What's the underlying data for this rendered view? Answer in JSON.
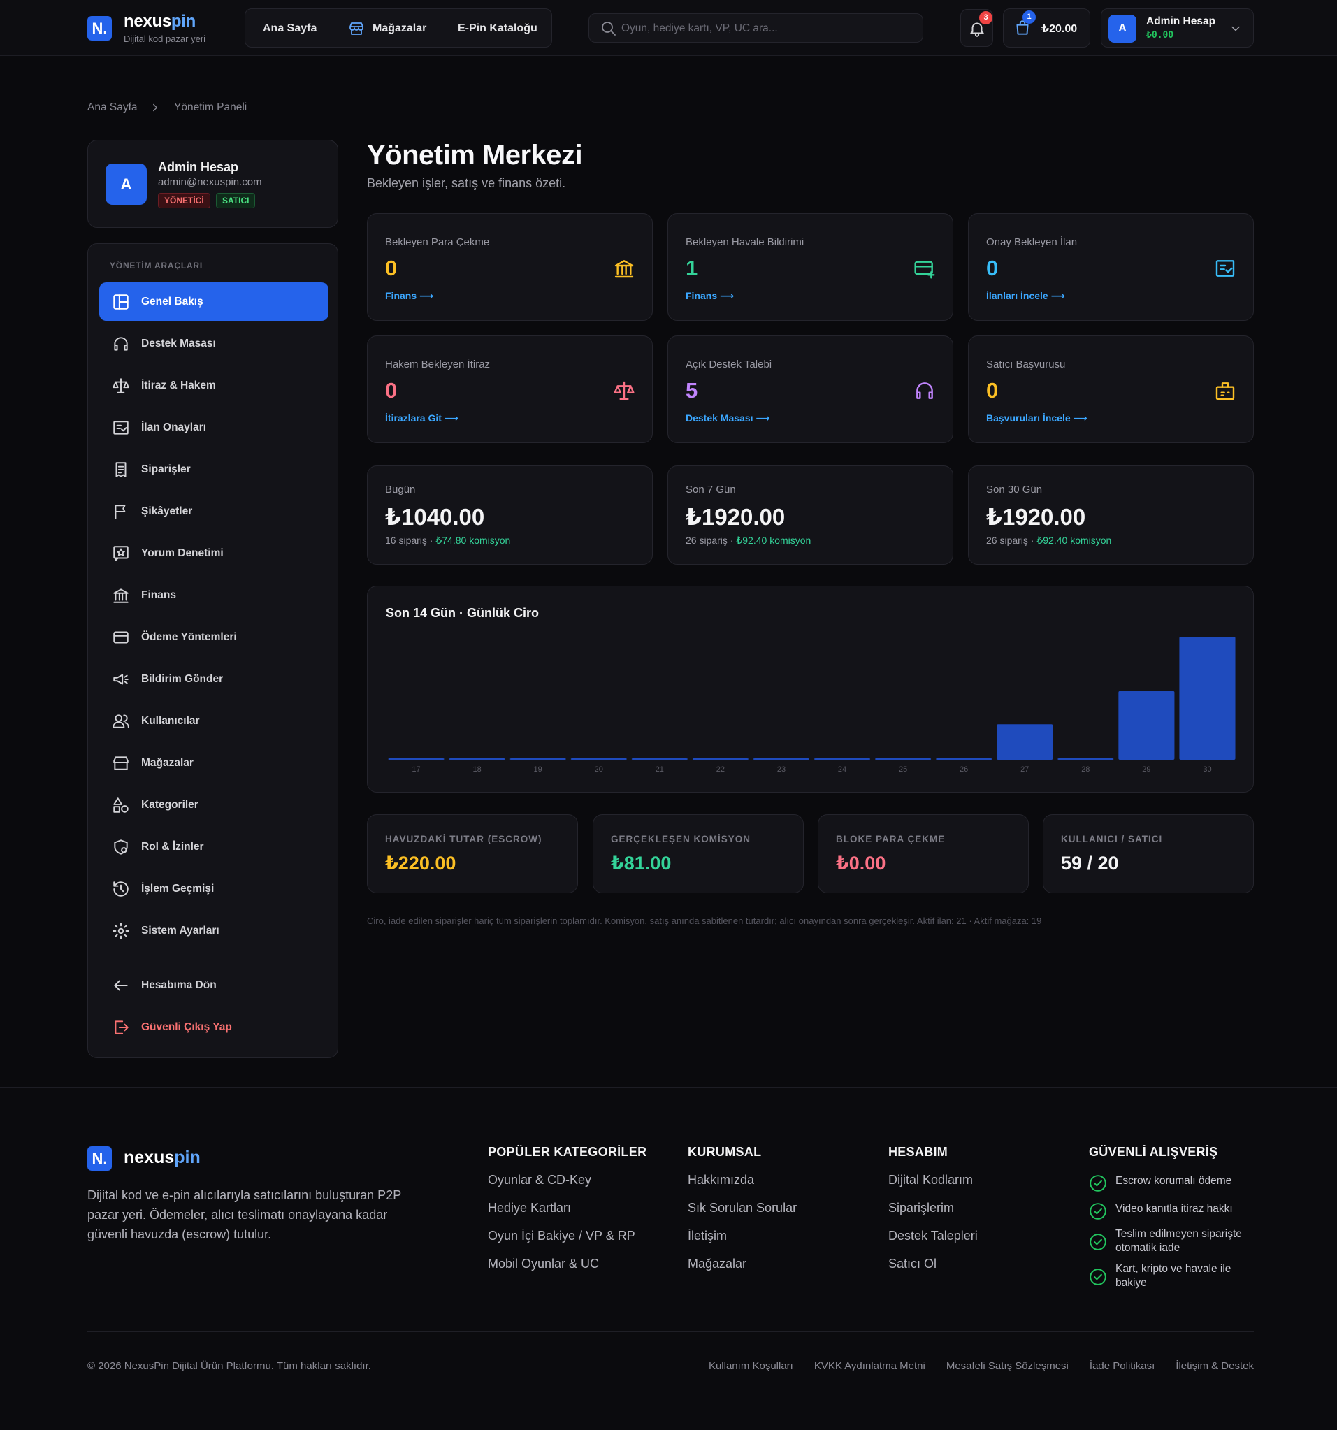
{
  "header": {
    "logo_letter": "N.",
    "logo_main": "nexus",
    "logo_accent": "pin",
    "tagline": "Dijital kod pazar yeri",
    "nav": [
      "Ana Sayfa",
      "Mağazalar",
      "E-Pin Kataloğu"
    ],
    "search_placeholder": "Oyun, hediye kartı, VP, UC ara...",
    "notification_count": "3",
    "cart_count": "1",
    "cart_total": "₺20.00",
    "user_initial": "A",
    "user_name": "Admin Hesap",
    "user_balance": "₺0.00"
  },
  "breadcrumb": [
    "Ana Sayfa",
    "Yönetim Paneli"
  ],
  "profile": {
    "initial": "A",
    "name": "Admin Hesap",
    "email": "admin@nexuspin.com",
    "badges": [
      "YÖNETİCİ",
      "SATICI"
    ]
  },
  "sidebar": {
    "heading": "YÖNETİM ARAÇLARI",
    "items": [
      "Genel Bakış",
      "Destek Masası",
      "İtiraz & Hakem",
      "İlan Onayları",
      "Siparişler",
      "Şikâyetler",
      "Yorum Denetimi",
      "Finans",
      "Ödeme Yöntemleri",
      "Bildirim Gönder",
      "Kullanıcılar",
      "Mağazalar",
      "Kategoriler",
      "Rol & İzinler",
      "İşlem Geçmişi",
      "Sistem Ayarları"
    ],
    "footer_items": [
      "Hesabıma Dön",
      "Güvenli Çıkış Yap"
    ]
  },
  "page": {
    "title": "Yönetim Merkezi",
    "subtitle": "Bekleyen işler, satış ve finans özeti."
  },
  "pending_cards": [
    {
      "label": "Bekleyen Para Çekme",
      "value": "0",
      "link": "Finans ⟶"
    },
    {
      "label": "Bekleyen Havale Bildirimi",
      "value": "1",
      "link": "Finans ⟶"
    },
    {
      "label": "Onay Bekleyen İlan",
      "value": "0",
      "link": "İlanları İncele ⟶"
    },
    {
      "label": "Hakem Bekleyen İtiraz",
      "value": "0",
      "link": "İtirazlara Git ⟶"
    },
    {
      "label": "Açık Destek Talebi",
      "value": "5",
      "link": "Destek Masası ⟶"
    },
    {
      "label": "Satıcı Başvurusu",
      "value": "0",
      "link": "Başvuruları İncele ⟶"
    }
  ],
  "revenue_cards": [
    {
      "label": "Bugün",
      "amount": "₺1040.00",
      "orders": "16 sipariş ·",
      "commission": "₺74.80 komisyon"
    },
    {
      "label": "Son 7 Gün",
      "amount": "₺1920.00",
      "orders": "26 sipariş ·",
      "commission": "₺92.40 komisyon"
    },
    {
      "label": "Son 30 Gün",
      "amount": "₺1920.00",
      "orders": "26 sipariş ·",
      "commission": "₺92.40 komisyon"
    }
  ],
  "chart": {
    "type": "bar",
    "title": "Son 14 Gün · Günlük Ciro",
    "categories": [
      "17",
      "18",
      "19",
      "20",
      "21",
      "22",
      "23",
      "24",
      "25",
      "26",
      "27",
      "28",
      "29",
      "30"
    ],
    "values": [
      0,
      0,
      0,
      0,
      0,
      0,
      0,
      0,
      0,
      0,
      300,
      0,
      580,
      1040
    ],
    "color": "#1f4bbd",
    "ylim": [
      0,
      1040
    ]
  },
  "stats": [
    {
      "label": "HAVUZDAKİ TUTAR (ESCROW)",
      "value": "₺220.00"
    },
    {
      "label": "GERÇEKLEŞEN KOMİSYON",
      "value": "₺81.00"
    },
    {
      "label": "BLOKE PARA ÇEKME",
      "value": "₺0.00"
    },
    {
      "label": "KULLANICI / SATICI",
      "value": "59 / 20"
    }
  ],
  "note": "Ciro, iade edilen siparişler hariç tüm siparişlerin toplamıdır. Komisyon, satış anında sabitlenen tutardır; alıcı onayından sonra gerçekleşir. Aktif ilan: 21 · Aktif mağaza: 19",
  "footer": {
    "description": "Dijital kod ve e-pin alıcılarıyla satıcılarını buluşturan P2P pazar yeri. Ödemeler, alıcı teslimatı onaylayana kadar güvenli havuzda (escrow) tutulur.",
    "columns": [
      {
        "title": "POPÜLER KATEGORİLER",
        "links": [
          "Oyunlar & CD-Key",
          "Hediye Kartları",
          "Oyun İçi Bakiye / VP & RP",
          "Mobil Oyunlar & UC"
        ]
      },
      {
        "title": "KURUMSAL",
        "links": [
          "Hakkımızda",
          "Sık Sorulan Sorular",
          "İletişim",
          "Mağazalar"
        ]
      },
      {
        "title": "HESABIM",
        "links": [
          "Dijital Kodlarım",
          "Siparişlerim",
          "Destek Talepleri",
          "Satıcı Ol"
        ]
      }
    ],
    "secure": {
      "title": "GÜVENLİ ALIŞVERİŞ",
      "items": [
        "Escrow korumalı ödeme",
        "Video kanıtla itiraz hakkı",
        "Teslim edilmeyen siparişte otomatik iade",
        "Kart, kripto ve havale ile bakiye"
      ]
    },
    "copyright": "© 2026 NexusPin Dijital Ürün Platformu. Tüm hakları saklıdır.",
    "legal_links": [
      "Kullanım Koşulları",
      "KVKK Aydınlatma Metni",
      "Mesafeli Satış Sözleşmesi",
      "İade Politikası",
      "İletişim & Destek"
    ]
  }
}
